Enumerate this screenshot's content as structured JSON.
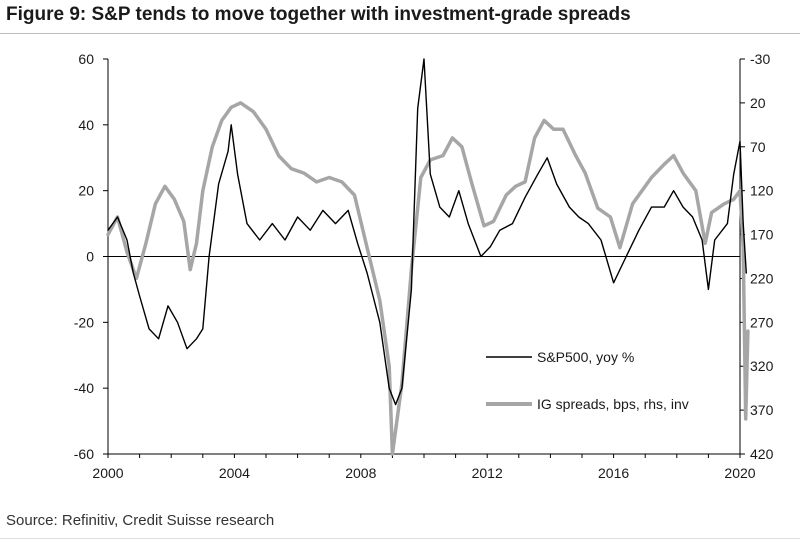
{
  "title": "Figure 9: S&P tends to move together with investment-grade spreads",
  "source": "Source: Refinitiv, Credit Suisse research",
  "colors": {
    "sp500": "#000000",
    "ig": "#a6a6a6",
    "axis": "#000000",
    "text": "#1a1a1a"
  },
  "chart_data": {
    "type": "line",
    "x_ticks": [
      "2000",
      "2004",
      "2008",
      "2012",
      "2016",
      "2020"
    ],
    "xlim": [
      2000,
      2020
    ],
    "y_left": {
      "ticks": [
        60,
        40,
        20,
        0,
        -20,
        -40,
        -60
      ],
      "range": [
        -60,
        60
      ]
    },
    "y_right": {
      "ticks": [
        -30,
        20,
        70,
        120,
        170,
        220,
        270,
        320,
        370,
        420
      ],
      "range": [
        420,
        -30
      ],
      "inverted": true
    },
    "grid": false,
    "legend": "inside-right",
    "series": [
      {
        "name": "S&P500, yoy %",
        "axis": "left",
        "color": "#000000",
        "points": [
          [
            2000.0,
            8
          ],
          [
            2000.3,
            12
          ],
          [
            2000.6,
            5
          ],
          [
            2000.8,
            -5
          ],
          [
            2001.0,
            -12
          ],
          [
            2001.3,
            -22
          ],
          [
            2001.6,
            -25
          ],
          [
            2001.9,
            -15
          ],
          [
            2002.2,
            -20
          ],
          [
            2002.5,
            -28
          ],
          [
            2002.8,
            -25
          ],
          [
            2003.0,
            -22
          ],
          [
            2003.2,
            0
          ],
          [
            2003.5,
            22
          ],
          [
            2003.8,
            32
          ],
          [
            2003.9,
            40
          ],
          [
            2004.1,
            25
          ],
          [
            2004.4,
            10
          ],
          [
            2004.8,
            5
          ],
          [
            2005.2,
            10
          ],
          [
            2005.6,
            5
          ],
          [
            2006.0,
            12
          ],
          [
            2006.4,
            8
          ],
          [
            2006.8,
            14
          ],
          [
            2007.2,
            10
          ],
          [
            2007.6,
            14
          ],
          [
            2007.9,
            4
          ],
          [
            2008.2,
            -5
          ],
          [
            2008.6,
            -20
          ],
          [
            2008.9,
            -40
          ],
          [
            2009.1,
            -45
          ],
          [
            2009.3,
            -40
          ],
          [
            2009.6,
            -10
          ],
          [
            2009.8,
            45
          ],
          [
            2010.0,
            60
          ],
          [
            2010.2,
            25
          ],
          [
            2010.5,
            15
          ],
          [
            2010.8,
            12
          ],
          [
            2011.1,
            20
          ],
          [
            2011.4,
            10
          ],
          [
            2011.8,
            0
          ],
          [
            2012.1,
            3
          ],
          [
            2012.4,
            8
          ],
          [
            2012.8,
            10
          ],
          [
            2013.2,
            18
          ],
          [
            2013.6,
            25
          ],
          [
            2013.9,
            30
          ],
          [
            2014.2,
            22
          ],
          [
            2014.6,
            15
          ],
          [
            2014.9,
            12
          ],
          [
            2015.2,
            10
          ],
          [
            2015.6,
            5
          ],
          [
            2016.0,
            -8
          ],
          [
            2016.4,
            0
          ],
          [
            2016.8,
            8
          ],
          [
            2017.2,
            15
          ],
          [
            2017.6,
            15
          ],
          [
            2017.9,
            20
          ],
          [
            2018.2,
            15
          ],
          [
            2018.5,
            12
          ],
          [
            2018.8,
            5
          ],
          [
            2019.0,
            -10
          ],
          [
            2019.2,
            5
          ],
          [
            2019.6,
            10
          ],
          [
            2019.8,
            25
          ],
          [
            2020.0,
            35
          ],
          [
            2020.1,
            10
          ],
          [
            2020.2,
            -5
          ]
        ]
      },
      {
        "name": "IG spreads, bps, rhs, inv",
        "axis": "right",
        "color": "#a6a6a6",
        "points": [
          [
            2000.0,
            170
          ],
          [
            2000.3,
            150
          ],
          [
            2000.6,
            190
          ],
          [
            2000.9,
            220
          ],
          [
            2001.2,
            180
          ],
          [
            2001.5,
            135
          ],
          [
            2001.8,
            115
          ],
          [
            2002.1,
            130
          ],
          [
            2002.4,
            155
          ],
          [
            2002.6,
            210
          ],
          [
            2002.8,
            180
          ],
          [
            2003.0,
            120
          ],
          [
            2003.3,
            70
          ],
          [
            2003.6,
            40
          ],
          [
            2003.9,
            25
          ],
          [
            2004.2,
            20
          ],
          [
            2004.6,
            30
          ],
          [
            2005.0,
            50
          ],
          [
            2005.4,
            80
          ],
          [
            2005.8,
            95
          ],
          [
            2006.2,
            100
          ],
          [
            2006.6,
            110
          ],
          [
            2007.0,
            105
          ],
          [
            2007.4,
            110
          ],
          [
            2007.8,
            125
          ],
          [
            2008.2,
            185
          ],
          [
            2008.6,
            245
          ],
          [
            2008.9,
            320
          ],
          [
            2009.0,
            440
          ],
          [
            2009.3,
            340
          ],
          [
            2009.6,
            210
          ],
          [
            2009.9,
            105
          ],
          [
            2010.2,
            85
          ],
          [
            2010.6,
            80
          ],
          [
            2010.9,
            60
          ],
          [
            2011.2,
            70
          ],
          [
            2011.5,
            110
          ],
          [
            2011.9,
            160
          ],
          [
            2012.2,
            155
          ],
          [
            2012.6,
            125
          ],
          [
            2012.9,
            115
          ],
          [
            2013.2,
            110
          ],
          [
            2013.5,
            60
          ],
          [
            2013.8,
            40
          ],
          [
            2014.1,
            50
          ],
          [
            2014.4,
            50
          ],
          [
            2014.8,
            80
          ],
          [
            2015.1,
            100
          ],
          [
            2015.5,
            140
          ],
          [
            2015.9,
            150
          ],
          [
            2016.2,
            185
          ],
          [
            2016.6,
            135
          ],
          [
            2016.9,
            120
          ],
          [
            2017.2,
            105
          ],
          [
            2017.6,
            90
          ],
          [
            2017.9,
            80
          ],
          [
            2018.2,
            100
          ],
          [
            2018.6,
            120
          ],
          [
            2018.9,
            180
          ],
          [
            2019.1,
            145
          ],
          [
            2019.5,
            135
          ],
          [
            2019.8,
            130
          ],
          [
            2020.0,
            120
          ],
          [
            2020.1,
            185
          ],
          [
            2020.18,
            380
          ],
          [
            2020.25,
            280
          ]
        ]
      }
    ]
  }
}
